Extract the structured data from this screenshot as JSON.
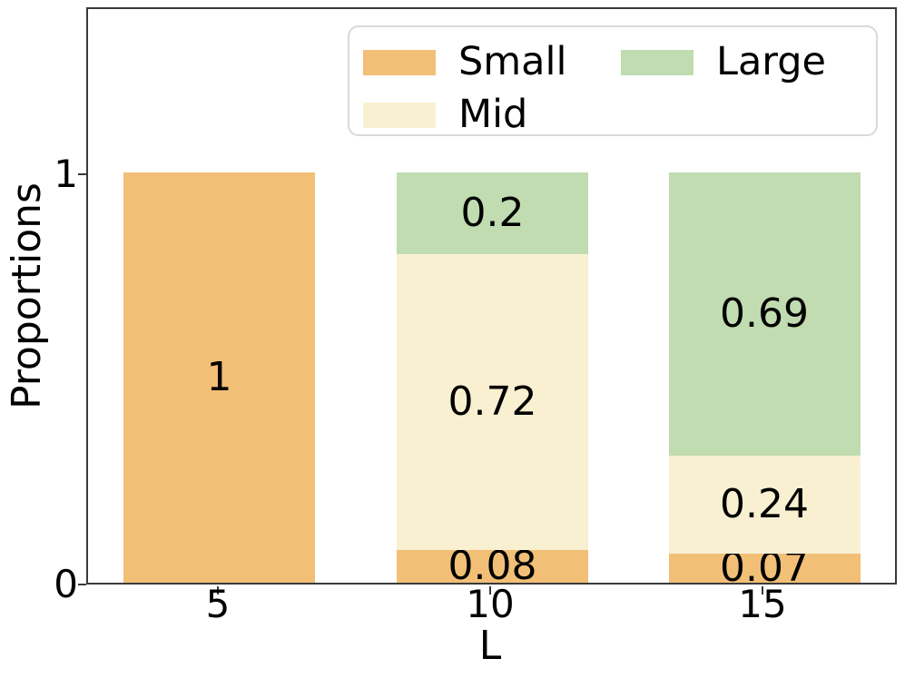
{
  "chart_data": {
    "type": "bar",
    "stacked": true,
    "xlabel": "L",
    "ylabel": "Proportions",
    "categories": [
      "5",
      "10",
      "15"
    ],
    "series": [
      {
        "name": "Small",
        "color": "#f2bf77",
        "values": [
          1,
          0.08,
          0.07
        ]
      },
      {
        "name": "Mid",
        "color": "#f9f0d2",
        "values": [
          0,
          0.72,
          0.24
        ]
      },
      {
        "name": "Large",
        "color": "#c1dcb0",
        "values": [
          0,
          0.2,
          0.69
        ]
      }
    ],
    "bar_value_labels": [
      [
        "1",
        "",
        ""
      ],
      [
        "0.08",
        "0.72",
        "0.2"
      ],
      [
        "0.07",
        "0.24",
        "0.69"
      ]
    ],
    "ylim": [
      0,
      1.4
    ],
    "ytick_labels": [
      "0",
      "1"
    ],
    "ytick_values": [
      0,
      1
    ],
    "grid": false,
    "legend_position": "upper center inside",
    "legend_entries": [
      "Small",
      "Mid",
      "Large"
    ]
  },
  "colors": {
    "spine": "#3a3a3a",
    "text": "#000000",
    "legend_border": "#d9d9d9",
    "legend_background": "#ffffff"
  }
}
